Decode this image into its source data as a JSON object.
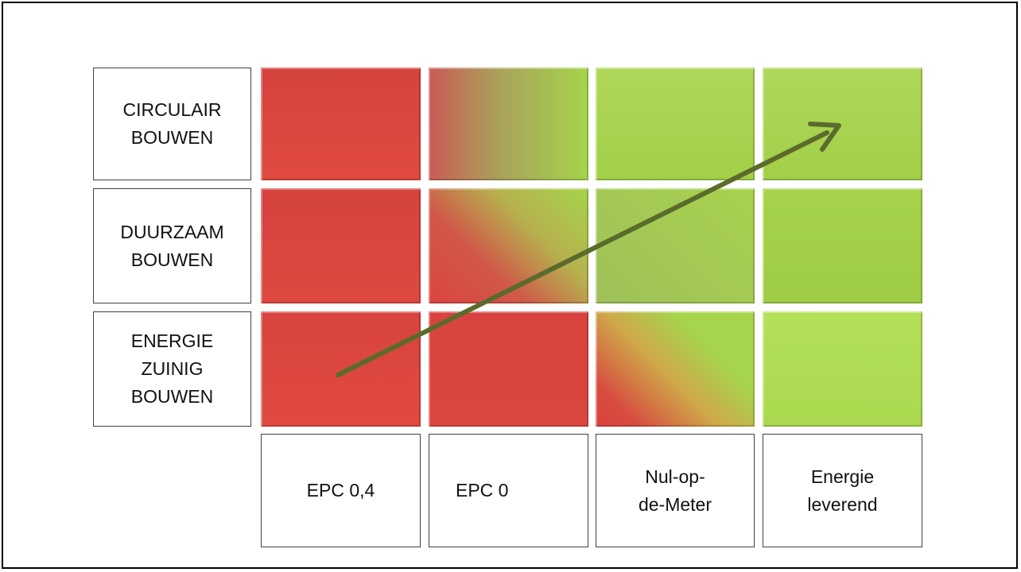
{
  "rows": [
    {
      "label": "CIRCULAIR\nBOUWEN"
    },
    {
      "label": "DUURZAAM\nBOUWEN"
    },
    {
      "label": "ENERGIE\nZUINIG\nBOUWEN"
    }
  ],
  "columns": [
    {
      "label": "EPC 0,4"
    },
    {
      "label": "EPC 0"
    },
    {
      "label": "Nul-op-\nde-Meter"
    },
    {
      "label": "Energie\nleverend"
    }
  ],
  "colors": {
    "red": "#d9433d",
    "green": "#a6d44c",
    "arrow": "#5a6b2c"
  }
}
